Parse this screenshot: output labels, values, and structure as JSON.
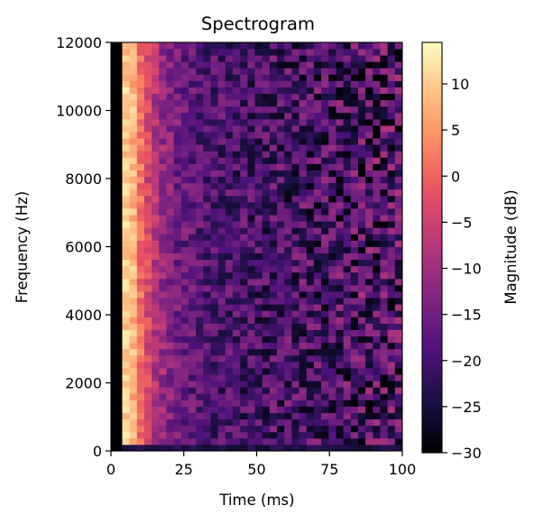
{
  "chart_data": {
    "type": "heatmap",
    "title": "Spectrogram",
    "xlabel": "Time (ms)",
    "ylabel": "Frequency (Hz)",
    "xlim": [
      0,
      100
    ],
    "ylim": [
      0,
      12000
    ],
    "x_ticks": [
      0,
      25,
      50,
      75,
      100
    ],
    "y_ticks": [
      0,
      2000,
      4000,
      6000,
      8000,
      10000,
      12000
    ],
    "colorbar": {
      "label": "Magnitude (dB)",
      "colormap": "magma",
      "range": [
        -30,
        14.5
      ],
      "ticks": [
        10,
        5,
        0,
        -5,
        -10,
        -15,
        -20,
        -25,
        -30
      ]
    },
    "grid": {
      "time_bins": 40,
      "freq_bins": 64,
      "time_start_ms": -1.2,
      "time_end_ms": 100,
      "freq_end_hz": 12000,
      "description_profile": {
        "silent_bins": 2,
        "peak_time_ms": 7,
        "peak_db": 10,
        "late_db": -20,
        "low_freq_row_db": -24
      }
    },
    "grid_visible": false
  }
}
